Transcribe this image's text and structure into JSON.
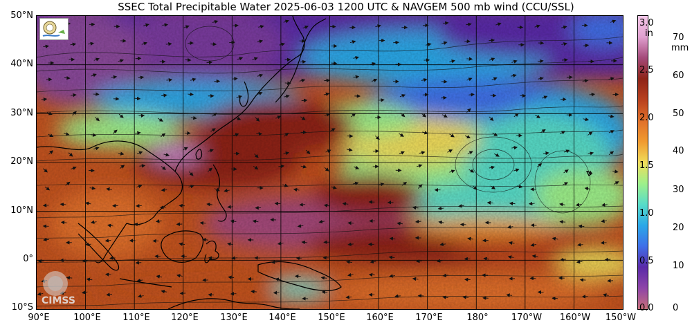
{
  "title": "SSEC Total Precipitable Water  2025-06-03 1200 UTC & NAVGEM 500 mb wind (CCU/SSL)",
  "lat_labels": [
    "50°N",
    "40°N",
    "30°N",
    "20°N",
    "10°N",
    "0°",
    "10°S"
  ],
  "lon_labels": [
    "90°E",
    "100°E",
    "110°E",
    "120°E",
    "130°E",
    "140°E",
    "150°E",
    "160°E",
    "170°E",
    "180°",
    "170°W",
    "160°W",
    "150°W"
  ],
  "colorbar": {
    "unit_in": "in",
    "unit_mm": "mm",
    "in_ticks": [
      "3.0",
      "2.5",
      "2.0",
      "1.5",
      "1.0",
      "0.5",
      "0.0"
    ],
    "mm_ticks": [
      "70",
      "60",
      "50",
      "40",
      "30",
      "20",
      "10",
      "0"
    ],
    "colors": [
      "#c8707a",
      "#8e44a8",
      "#5a2aa8",
      "#3f6fe8",
      "#2aa8e8",
      "#58dcc8",
      "#9ef08a",
      "#f0dc5a",
      "#f09a30",
      "#e0702a",
      "#b8401e",
      "#8e2418",
      "#a44a7a",
      "#e0a0d0",
      "#f4c8e8"
    ]
  },
  "logos": {
    "ssec_logo": "SSEC seal logo",
    "cimss_logo": "CIMSS"
  },
  "map": {
    "projection": "equirectangular",
    "lat_range": [
      "10°S",
      "50°N"
    ],
    "lon_range": [
      "90°E",
      "150°W"
    ],
    "grid": true,
    "field": "total precipitable water",
    "overlay": "500 mb wind streamlines"
  }
}
